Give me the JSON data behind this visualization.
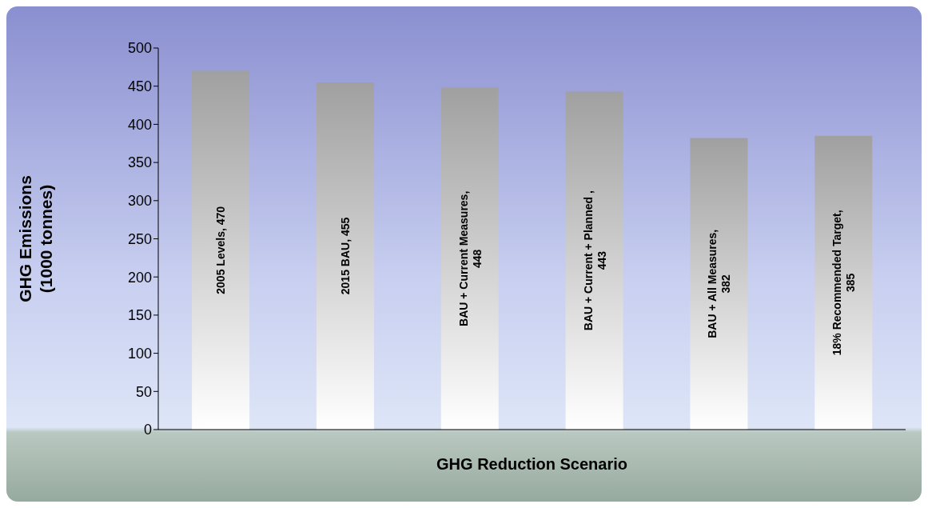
{
  "chart_data": {
    "type": "bar",
    "xlabel": "GHG Reduction Scenario",
    "ylabel": "GHG Emissions (1000 tonnes)",
    "categories": [
      null,
      null,
      null,
      null,
      null,
      null
    ],
    "values": [
      470,
      455,
      448,
      443,
      382,
      385
    ],
    "color": "#a0a0a0",
    "value_labels": [
      "2005 Levels, 470",
      "2015 BAU, 455",
      "BAU + Current Measures, 448",
      "BAU + Current + Planned , 443",
      "BAU + All Measures, 382",
      "18% Recommended Target, 385"
    ],
    "ylim": [
      0,
      500
    ],
    "yticks": [
      0,
      50,
      100,
      150,
      200,
      250,
      300,
      350,
      400,
      450,
      500
    ],
    "tick_labels": "y"
  }
}
